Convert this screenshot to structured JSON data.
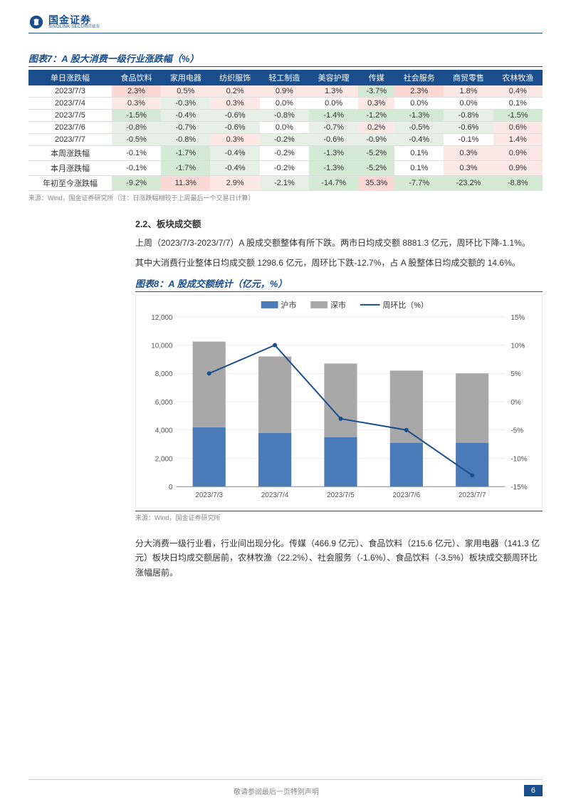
{
  "header": {
    "logo_cn": "国金证券",
    "logo_en": "SINOLINK SECURITIES"
  },
  "table7": {
    "title": "图表7：A 股大消费一级行业涨跌幅（%）",
    "columns": [
      "单日涨跌幅",
      "食品饮料",
      "家用电器",
      "纺织服饰",
      "轻工制造",
      "美容护理",
      "传媒",
      "社会服务",
      "商贸零售",
      "农林牧渔"
    ],
    "rows": [
      {
        "label": "2023/7/3",
        "cells": [
          {
            "v": "2.3%",
            "c": "bg-pink"
          },
          {
            "v": "0.5%",
            "c": "bg-lpink"
          },
          {
            "v": "0.2%",
            "c": "bg-lpink"
          },
          {
            "v": "0.9%",
            "c": "bg-lpink"
          },
          {
            "v": "1.3%",
            "c": "bg-lpink"
          },
          {
            "v": "-3.7%",
            "c": "bg-green"
          },
          {
            "v": "2.3%",
            "c": "bg-pink"
          },
          {
            "v": "1.8%",
            "c": "bg-lpink"
          },
          {
            "v": "0.4%",
            "c": "bg-lpink"
          }
        ]
      },
      {
        "label": "2023/7/4",
        "cells": [
          {
            "v": "0.3%",
            "c": "bg-lpink"
          },
          {
            "v": "-0.3%",
            "c": "bg-lgreen"
          },
          {
            "v": "0.3%",
            "c": "bg-lpink"
          },
          {
            "v": "0.0%",
            "c": ""
          },
          {
            "v": "0.0%",
            "c": ""
          },
          {
            "v": "0.3%",
            "c": "bg-lpink"
          },
          {
            "v": "0.0%",
            "c": ""
          },
          {
            "v": "0.0%",
            "c": ""
          },
          {
            "v": "0.1%",
            "c": ""
          }
        ]
      },
      {
        "label": "2023/7/5",
        "cells": [
          {
            "v": "-1.5%",
            "c": "bg-green"
          },
          {
            "v": "-0.4%",
            "c": "bg-lgreen"
          },
          {
            "v": "-0.6%",
            "c": "bg-lgreen"
          },
          {
            "v": "-0.8%",
            "c": "bg-lgreen"
          },
          {
            "v": "-1.4%",
            "c": "bg-green"
          },
          {
            "v": "-1.2%",
            "c": "bg-green"
          },
          {
            "v": "-1.3%",
            "c": "bg-green"
          },
          {
            "v": "-0.8%",
            "c": "bg-lgreen"
          },
          {
            "v": "-1.5%",
            "c": "bg-green"
          }
        ]
      },
      {
        "label": "2023/7/6",
        "cells": [
          {
            "v": "-0.8%",
            "c": "bg-lgreen"
          },
          {
            "v": "-0.7%",
            "c": "bg-lgreen"
          },
          {
            "v": "-0.6%",
            "c": "bg-lgreen"
          },
          {
            "v": "0.0%",
            "c": ""
          },
          {
            "v": "-0.7%",
            "c": "bg-lgreen"
          },
          {
            "v": "0.2%",
            "c": "bg-lpink"
          },
          {
            "v": "-0.5%",
            "c": "bg-lgreen"
          },
          {
            "v": "-0.6%",
            "c": "bg-lgreen"
          },
          {
            "v": "0.6%",
            "c": "bg-lpink"
          }
        ]
      },
      {
        "label": "2023/7/7",
        "cells": [
          {
            "v": "-0.5%",
            "c": "bg-lgreen"
          },
          {
            "v": "-0.8%",
            "c": "bg-lgreen"
          },
          {
            "v": "0.3%",
            "c": "bg-lpink"
          },
          {
            "v": "-0.2%",
            "c": "bg-lgreen"
          },
          {
            "v": "-0.6%",
            "c": "bg-lgreen"
          },
          {
            "v": "-0.9%",
            "c": "bg-lgreen"
          },
          {
            "v": "-0.4%",
            "c": "bg-lgreen"
          },
          {
            "v": "-0.1%",
            "c": ""
          },
          {
            "v": "1.4%",
            "c": "bg-lpink"
          }
        ]
      }
    ],
    "summary_rows": [
      {
        "label": "本周涨跌幅",
        "cells": [
          {
            "v": "-0.1%",
            "c": ""
          },
          {
            "v": "-1.7%",
            "c": "bg-green"
          },
          {
            "v": "-0.4%",
            "c": "bg-lgreen"
          },
          {
            "v": "-0.2%",
            "c": ""
          },
          {
            "v": "-1.3%",
            "c": "bg-green"
          },
          {
            "v": "-5.2%",
            "c": "bg-green"
          },
          {
            "v": "0.1%",
            "c": ""
          },
          {
            "v": "0.3%",
            "c": "bg-lpink"
          },
          {
            "v": "0.9%",
            "c": "bg-lpink"
          }
        ]
      },
      {
        "label": "本月涨跌幅",
        "cells": [
          {
            "v": "-0.1%",
            "c": ""
          },
          {
            "v": "-1.7%",
            "c": "bg-green"
          },
          {
            "v": "-0.4%",
            "c": "bg-lgreen"
          },
          {
            "v": "-0.2%",
            "c": ""
          },
          {
            "v": "-1.3%",
            "c": "bg-green"
          },
          {
            "v": "-5.2%",
            "c": "bg-green"
          },
          {
            "v": "0.1%",
            "c": ""
          },
          {
            "v": "0.3%",
            "c": "bg-lpink"
          },
          {
            "v": "0.9%",
            "c": "bg-lpink"
          }
        ]
      },
      {
        "label": "年初至今涨跌幅",
        "cells": [
          {
            "v": "-9.2%",
            "c": "bg-green"
          },
          {
            "v": "11.3%",
            "c": "bg-pink"
          },
          {
            "v": "2.9%",
            "c": "bg-lpink"
          },
          {
            "v": "-2.1%",
            "c": "bg-lgreen"
          },
          {
            "v": "-14.7%",
            "c": "bg-green"
          },
          {
            "v": "35.3%",
            "c": "bg-pink"
          },
          {
            "v": "-7.7%",
            "c": "bg-green"
          },
          {
            "v": "-23.2%",
            "c": "bg-green"
          },
          {
            "v": "-8.8%",
            "c": "bg-green"
          }
        ]
      }
    ],
    "source": "来源：Wind，国金证券研究所（注：日涨跌幅相较于上周最后一个交易日计算）"
  },
  "section22": {
    "heading": "2.2、板块成交额",
    "para1": "上周（2023/7/3-2023/7/7）A 股成交额整体有所下跌。两市日均成交额 8881.3 亿元，周环比下降-1.1%。",
    "para2": "其中大消费行业整体日均成交额 1298.6 亿元，周环比下跌-12.7%，占 A 股整体日均成交额的 14.6%。"
  },
  "chart8": {
    "title": "图表8：A 股成交额统计（亿元，%）",
    "legend": [
      "沪市",
      "深市",
      "周环比（%）"
    ],
    "legend_colors": [
      "#4a7ab8",
      "#a8a8a8",
      "#1a4d8c"
    ],
    "categories": [
      "2023/7/3",
      "2023/7/4",
      "2023/7/5",
      "2023/7/6",
      "2023/7/7"
    ],
    "hu": [
      4200,
      3800,
      3500,
      3100,
      3100
    ],
    "shen": [
      6050,
      5400,
      5200,
      5100,
      4900
    ],
    "wow": [
      5,
      10,
      -3,
      -5,
      -13
    ],
    "y1_min": 0,
    "y1_max": 12000,
    "y1_step": 2000,
    "y2_min": -15,
    "y2_max": 15,
    "y2_step": 5,
    "background_color": "#ffffff",
    "grid_color": "#dddddd",
    "bar_width": 0.5,
    "source": "来源：Wind，国金证券研究所"
  },
  "para_after_chart": "分大消费一级行业看，行业间出现分化。传媒（466.9 亿元）、食品饮料（215.6 亿元）、家用电器（141.3 亿元）板块日均成交额居前，农林牧渔（22.2%）、社会服务（-1.6%）、食品饮料（-3.5%）板块成交额周环比涨幅居前。",
  "footer": {
    "text": "敬请参阅最后一页特别声明",
    "page": "6"
  }
}
